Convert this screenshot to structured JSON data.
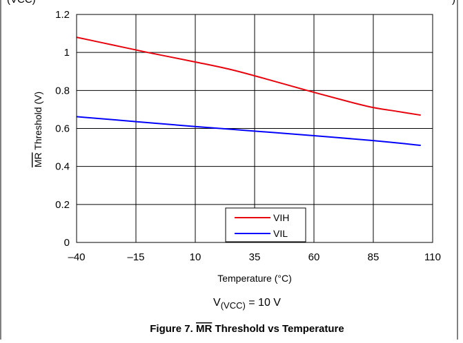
{
  "chart_data": {
    "type": "line",
    "title": "",
    "xlabel": "Temperature (°C)",
    "ylabel": "MR Threshold (V)",
    "ylabel_overline": "MR",
    "ylabel_rest": " Threshold (V)",
    "xlim": [
      -40,
      110
    ],
    "ylim": [
      0,
      1.2
    ],
    "xticks": [
      -40,
      -15,
      10,
      35,
      60,
      85,
      110
    ],
    "xtick_labels": [
      "–40",
      "–15",
      "10",
      "35",
      "60",
      "85",
      "110"
    ],
    "yticks": [
      0,
      0.2,
      0.4,
      0.6,
      0.8,
      1.0,
      1.2
    ],
    "ytick_labels": [
      "0",
      "0.2",
      "0.4",
      "0.6",
      "0.8",
      "1",
      "1.2"
    ],
    "grid": true,
    "legend_position": "bottom-center",
    "series": [
      {
        "name": "VIH",
        "color": "#e8000b",
        "x": [
          -40,
          -25,
          -10,
          10,
          25,
          40,
          60,
          75,
          85,
          95,
          105
        ],
        "y": [
          1.08,
          1.04,
          1.0,
          0.95,
          0.91,
          0.86,
          0.79,
          0.74,
          0.71,
          0.69,
          0.67
        ]
      },
      {
        "name": "VIL",
        "color": "#0000ff",
        "x": [
          -40,
          -15,
          10,
          35,
          60,
          85,
          105
        ],
        "y": [
          0.662,
          0.636,
          0.61,
          0.586,
          0.562,
          0.536,
          0.511
        ]
      }
    ]
  },
  "condition": {
    "prefix": "V",
    "subscript": "(VCC)",
    "suffix": " = 10 V"
  },
  "caption": {
    "prefix": "Figure 7. ",
    "overline": "MR",
    "rest": " Threshold vs Temperature"
  },
  "top_cut": {
    "left": "(VCC)",
    "right": ")"
  }
}
